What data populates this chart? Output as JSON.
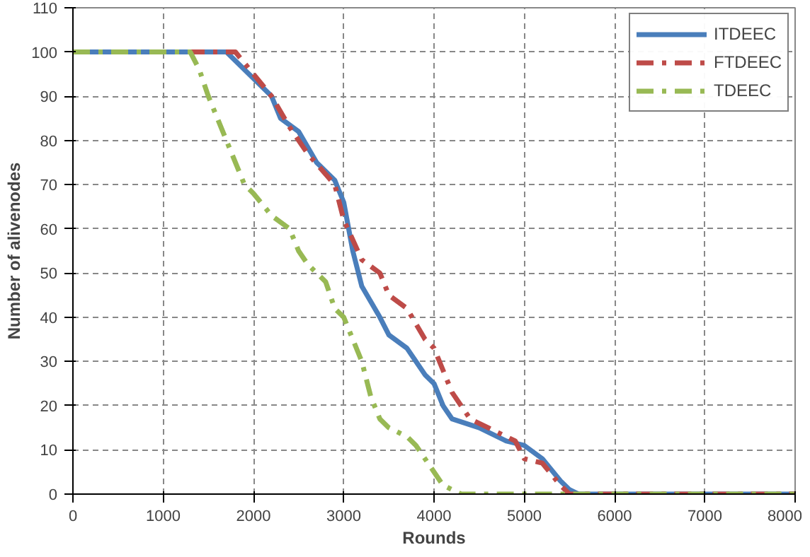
{
  "chart_data": {
    "type": "line",
    "xlabel": "Rounds",
    "ylabel": "Number of alivenodes",
    "xlim": [
      0,
      8000
    ],
    "xticks": [
      0,
      1000,
      2000,
      3000,
      4000,
      5000,
      6000,
      7000,
      8000
    ],
    "ylim": [
      0,
      110
    ],
    "yticks": [
      0,
      10,
      20,
      30,
      40,
      50,
      60,
      70,
      80,
      90,
      100,
      110
    ],
    "grid": true,
    "legend": "top right",
    "marker": "none",
    "series": [
      {
        "name": "ITDEEC",
        "color": "#4a7ebb",
        "line_style": "solid",
        "x": [
          0,
          1700,
          1900,
          2000,
          2200,
          2300,
          2500,
          2700,
          2900,
          3000,
          3100,
          3200,
          3400,
          3500,
          3700,
          3900,
          4000,
          4100,
          4200,
          4500,
          4800,
          5000,
          5200,
          5400,
          5500,
          5600,
          8000
        ],
        "values": [
          100,
          100,
          96,
          94,
          90,
          85,
          82,
          75,
          71,
          66,
          55,
          47,
          40,
          36,
          33,
          27,
          25,
          20,
          17,
          15,
          12,
          11,
          8,
          3,
          1,
          0,
          0
        ]
      },
      {
        "name": "FTDEEC",
        "color": "#be4b48",
        "line_style": "dashed",
        "x": [
          0,
          1800,
          2000,
          2200,
          2400,
          2600,
          2900,
          3000,
          3200,
          3400,
          3500,
          3700,
          3900,
          4000,
          4200,
          4300,
          4400,
          4600,
          4900,
          5000,
          5200,
          5400,
          5500,
          8000
        ],
        "values": [
          100,
          100,
          95,
          90,
          83,
          77,
          70,
          62,
          53,
          50,
          45,
          42,
          35,
          33,
          23,
          20,
          17,
          15,
          12,
          8,
          7,
          2,
          0,
          0
        ]
      },
      {
        "name": "TDEEC",
        "color": "#98b954",
        "line_style": "dashed",
        "x": [
          0,
          1300,
          1400,
          1500,
          1600,
          1700,
          1800,
          1900,
          2000,
          2200,
          2400,
          2500,
          2600,
          2800,
          2900,
          3000,
          3100,
          3200,
          3300,
          3400,
          3500,
          3700,
          3800,
          4000,
          4100,
          4300,
          8000
        ],
        "values": [
          100,
          100,
          96,
          90,
          85,
          80,
          75,
          70,
          68,
          63,
          60,
          55,
          52,
          48,
          42,
          40,
          35,
          30,
          22,
          17,
          15,
          13,
          11,
          5,
          2,
          0,
          0
        ]
      }
    ]
  }
}
